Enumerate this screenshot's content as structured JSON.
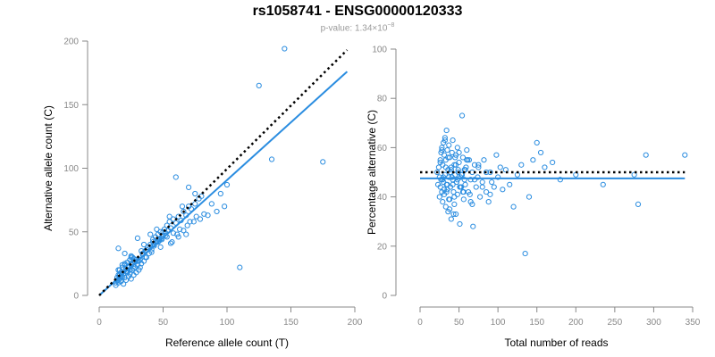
{
  "header": {
    "title": "rs1058741 - ENSG00000120333",
    "pvalue_prefix": "p-value: 1.34×10",
    "pvalue_exponent": "−8"
  },
  "colors": {
    "points": "#2b8de0",
    "fit_line": "#2b8de0",
    "reference_line": "#000000",
    "axis": "#888888"
  },
  "chart_data": [
    {
      "type": "scatter",
      "xlabel": "Reference allele count (T)",
      "ylabel": "Alternative allele count (C)",
      "xlim": [
        0,
        200
      ],
      "ylim": [
        0,
        200
      ],
      "xticks": [
        0,
        50,
        100,
        150,
        200
      ],
      "yticks": [
        0,
        50,
        100,
        150,
        200
      ],
      "grid": false,
      "reference_line": {
        "style": "dotted",
        "color": "#000000",
        "from": [
          0,
          0
        ],
        "to": [
          194,
          193
        ]
      },
      "fit_line": {
        "style": "solid",
        "color": "#2b8de0",
        "from": [
          0,
          0
        ],
        "to": [
          194,
          176
        ]
      },
      "x": [
        13,
        14,
        15,
        15,
        16,
        16,
        17,
        17,
        18,
        18,
        19,
        19,
        20,
        20,
        21,
        21,
        22,
        22,
        23,
        23,
        24,
        24,
        25,
        25,
        26,
        26,
        27,
        27,
        28,
        29,
        30,
        31,
        32,
        33,
        34,
        35,
        36,
        37,
        38,
        39,
        40,
        41,
        42,
        43,
        44,
        45,
        46,
        47,
        48,
        49,
        50,
        51,
        52,
        53,
        54,
        55,
        56,
        58,
        60,
        62,
        64,
        66,
        68,
        70,
        72,
        75,
        78,
        80,
        55,
        60,
        65,
        70,
        75,
        30,
        35,
        40,
        45,
        50,
        15,
        18,
        22,
        25,
        28,
        32,
        14,
        16,
        20,
        24,
        27,
        33,
        38,
        42,
        47,
        52,
        57,
        61,
        66,
        71,
        76,
        82,
        88,
        95,
        100,
        13,
        15,
        17,
        19,
        21,
        23,
        25,
        27,
        29,
        31,
        34,
        37,
        40,
        43,
        46,
        49,
        53,
        58,
        63,
        69,
        74,
        79,
        85,
        92,
        98,
        110,
        125,
        135,
        145,
        175,
        15,
        20,
        25,
        30,
        36,
        41,
        48,
        56,
        62,
        68
      ],
      "y": [
        8,
        12,
        10,
        16,
        13,
        20,
        11,
        18,
        15,
        22,
        9,
        17,
        14,
        24,
        12,
        21,
        19,
        26,
        15,
        23,
        17,
        28,
        13,
        25,
        20,
        30,
        16,
        27,
        22,
        18,
        24,
        20,
        28,
        25,
        32,
        27,
        35,
        30,
        38,
        33,
        40,
        36,
        44,
        39,
        46,
        42,
        48,
        43,
        50,
        45,
        47,
        52,
        49,
        55,
        51,
        58,
        53,
        60,
        57,
        62,
        59,
        66,
        63,
        70,
        68,
        72,
        76,
        78,
        62,
        93,
        70,
        85,
        80,
        45,
        40,
        48,
        52,
        50,
        20,
        24,
        18,
        30,
        26,
        22,
        14,
        16,
        25,
        20,
        29,
        35,
        38,
        42,
        44,
        47,
        42,
        48,
        51,
        58,
        62,
        64,
        72,
        80,
        87,
        10,
        12,
        15,
        17,
        19,
        22,
        24,
        21,
        28,
        27,
        33,
        36,
        38,
        40,
        42,
        44,
        46,
        49,
        52,
        55,
        58,
        60,
        63,
        66,
        70,
        22,
        165,
        107,
        194,
        105,
        37,
        33,
        31,
        27,
        30,
        34,
        38,
        41,
        46,
        48
      ]
    },
    {
      "type": "scatter",
      "xlabel": "Total number of reads",
      "ylabel": "Percentage alternative (C)",
      "xlim": [
        0,
        350
      ],
      "ylim": [
        0,
        100
      ],
      "xticks": [
        0,
        50,
        100,
        150,
        200,
        250,
        300,
        350
      ],
      "yticks": [
        0,
        20,
        40,
        60,
        80,
        100
      ],
      "grid": false,
      "reference_line": {
        "style": "dotted",
        "color": "#000000",
        "from": [
          0,
          50
        ],
        "to": [
          340,
          50
        ]
      },
      "fit_line": {
        "style": "solid",
        "color": "#2b8de0",
        "from": [
          0,
          47.5
        ],
        "to": [
          340,
          47.5
        ]
      },
      "x": [
        22,
        23,
        24,
        25,
        25,
        26,
        26,
        27,
        27,
        28,
        28,
        29,
        29,
        30,
        30,
        31,
        31,
        32,
        32,
        33,
        33,
        34,
        34,
        35,
        35,
        36,
        36,
        37,
        37,
        38,
        38,
        39,
        40,
        40,
        41,
        42,
        42,
        43,
        44,
        44,
        45,
        46,
        46,
        47,
        48,
        48,
        49,
        50,
        51,
        52,
        53,
        54,
        55,
        56,
        57,
        58,
        60,
        62,
        63,
        65,
        67,
        68,
        70,
        72,
        74,
        75,
        77,
        80,
        82,
        85,
        88,
        90,
        92,
        95,
        98,
        100,
        103,
        106,
        110,
        115,
        120,
        125,
        130,
        135,
        140,
        145,
        150,
        155,
        160,
        170,
        180,
        200,
        235,
        275,
        280,
        290,
        340,
        28,
        30,
        32,
        34,
        36,
        38,
        40,
        42,
        44,
        46,
        48,
        50,
        52,
        54,
        56,
        58,
        60,
        65,
        70,
        75,
        80,
        85,
        90,
        26,
        29,
        31,
        33,
        35,
        37,
        39,
        41,
        43,
        45,
        47,
        49,
        51,
        53,
        55,
        57,
        59,
        61,
        64,
        67
      ],
      "y": [
        50,
        45,
        52,
        48,
        40,
        55,
        44,
        58,
        47,
        60,
        42,
        53,
        38,
        62,
        46,
        57,
        41,
        64,
        49,
        36,
        55,
        45,
        67,
        43,
        59,
        51,
        34,
        61,
        48,
        39,
        56,
        44,
        52,
        31,
        58,
        47,
        63,
        42,
        53,
        37,
        49,
        57,
        33,
        46,
        60,
        41,
        50,
        54,
        29,
        48,
        44,
        73,
        56,
        39,
        51,
        45,
        59,
        42,
        55,
        47,
        50,
        28,
        53,
        44,
        48,
        52,
        40,
        46,
        55,
        42,
        38,
        50,
        46,
        44,
        57,
        48,
        52,
        43,
        51,
        45,
        36,
        49,
        53,
        17,
        40,
        55,
        62,
        58,
        52,
        54,
        47,
        49,
        45,
        49,
        37,
        57,
        57,
        59,
        48,
        63,
        42,
        56,
        35,
        51,
        45,
        40,
        53,
        47,
        58,
        44,
        49,
        42,
        51,
        55,
        38,
        47,
        53,
        44,
        50,
        41,
        54,
        47,
        43,
        52,
        45,
        39,
        50,
        48,
        33,
        56,
        46,
        51,
        44,
        49,
        42,
        47,
        52,
        55,
        41,
        37
      ]
    }
  ]
}
